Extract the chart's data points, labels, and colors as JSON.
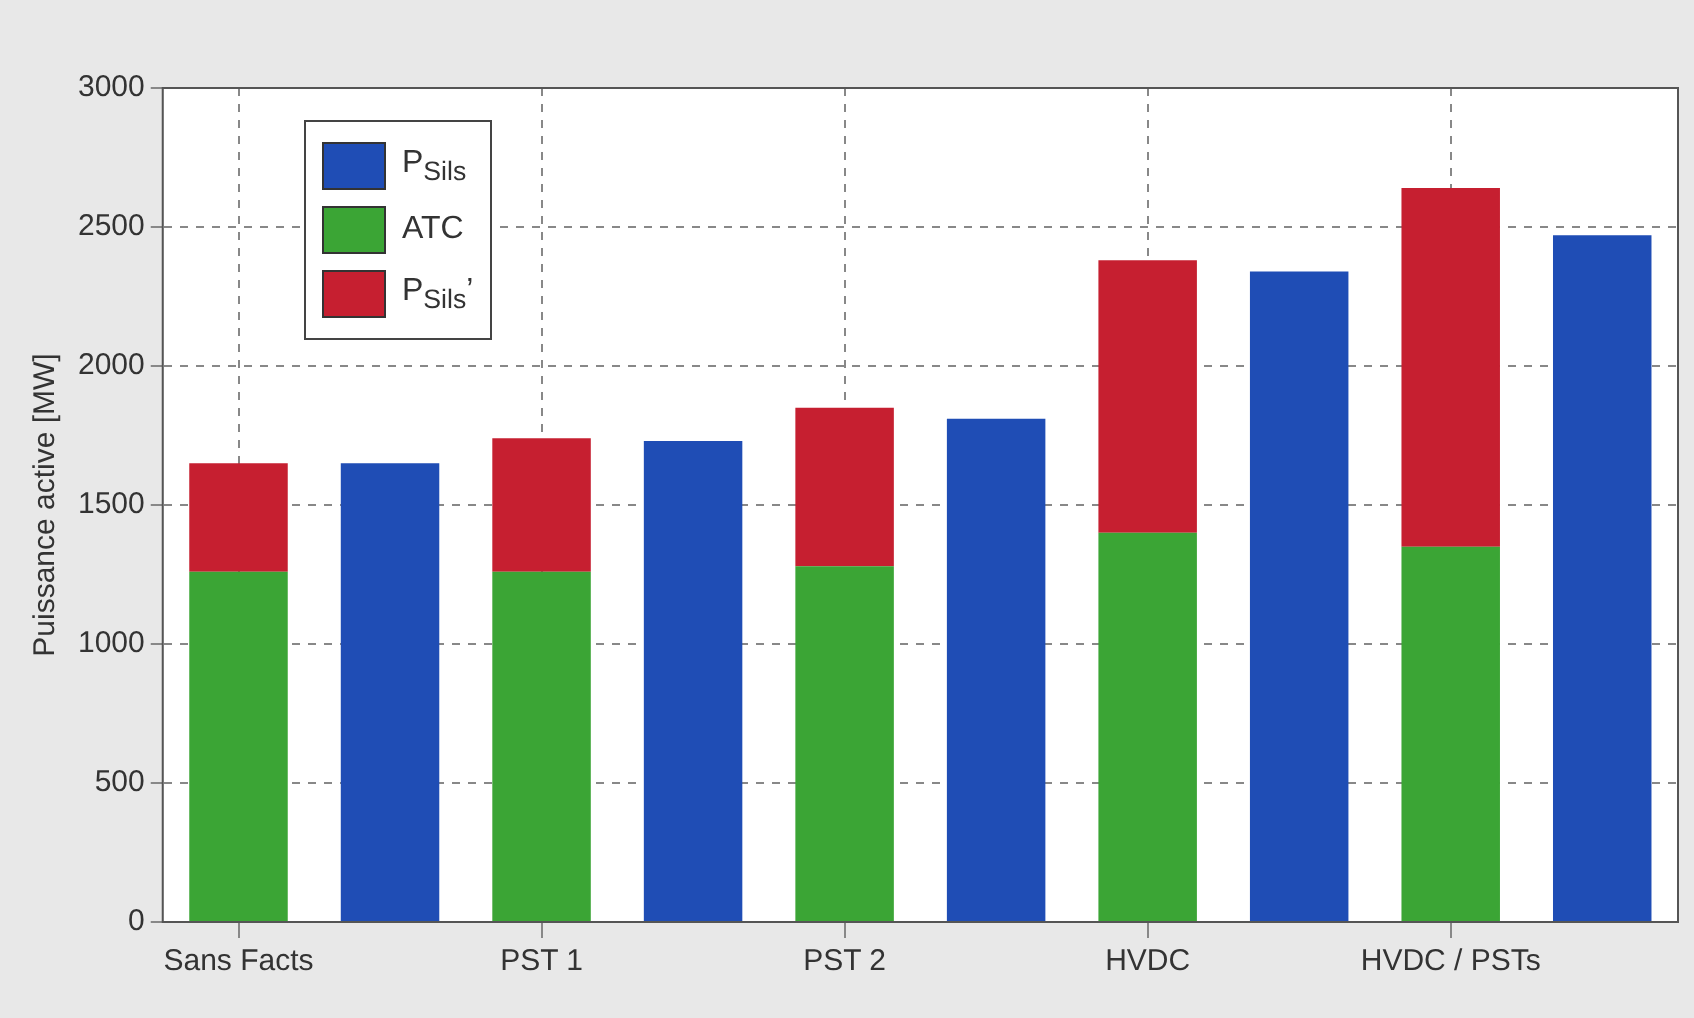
{
  "chart_data": {
    "type": "bar",
    "ylabel": "Puissance active [MW]",
    "categories": [
      "Sans Facts",
      null,
      "PST 1",
      null,
      "PST 2",
      null,
      "HVDC",
      null,
      "HVDC / PSTs",
      null
    ],
    "series": [
      {
        "name": "P$_{Sils}$",
        "color": "#1f4db5",
        "values": [
          null,
          1650,
          null,
          1730,
          null,
          1810,
          null,
          2340,
          null,
          2470
        ]
      },
      {
        "name": "ATC",
        "color": "#3ba535",
        "values": [
          1260,
          null,
          1260,
          null,
          1280,
          null,
          1400,
          null,
          1350,
          null
        ]
      },
      {
        "name": "P$_{Sils}$’",
        "color": "#c61f30",
        "values": [
          390,
          null,
          480,
          null,
          570,
          null,
          980,
          null,
          1290,
          null
        ]
      }
    ],
    "stacked": true,
    "ylim": [
      0,
      3000
    ],
    "yticks": [
      0,
      500,
      1000,
      1500,
      2000,
      2500,
      3000
    ],
    "grid": true,
    "legend": "top left",
    "line_style": "dashed"
  }
}
